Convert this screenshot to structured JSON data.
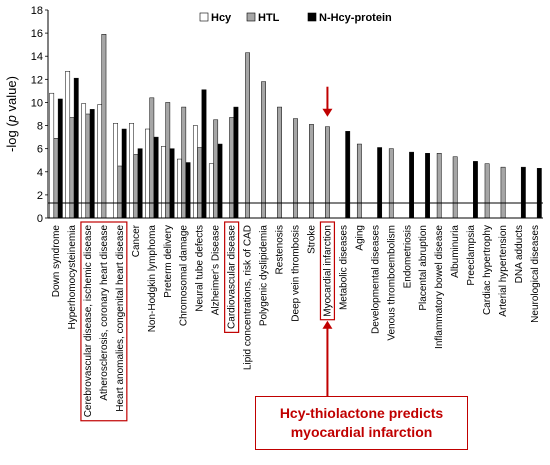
{
  "chart_data": {
    "type": "bar",
    "ylabel_prefix": "-log (",
    "ylabel_italic": "p",
    "ylabel_suffix": " value)",
    "ylim": [
      0,
      18
    ],
    "yticks": [
      0,
      2,
      4,
      6,
      8,
      10,
      12,
      14,
      16,
      18
    ],
    "threshold": 1.3,
    "legend_position": "top",
    "grid": false,
    "categories": [
      "Down syndrome",
      "Hyperhomocysteinemia",
      "Cerebrovascular disease, ischemic disease",
      "Atherosclerosis, coronary heart disease",
      "Heart anomalies, congenital heart disease",
      "Cancer",
      "Non-Hodgkin lymphoma",
      "Preterm delivery",
      "Chromosomal damage",
      "Neural tube defects",
      "Alzheimer's Disease",
      "Cardiovascular disease",
      "Lipid concentrations, risk of CAD",
      "Polygenic dyslipidemia",
      "Restenosis",
      "Deep vein thrombosis",
      "Stroke",
      "Myocardial infarction",
      "Metabolic diseases",
      "Aging",
      "Developmental diseases",
      "Venous thromboembolism",
      "Endometriosis",
      "Placental abruption",
      "Inflammatory bowel disease",
      "Albuminuria",
      "Preeclampsia",
      "Cardiac hypertrophy",
      "Arterial hypertension",
      "DNA adducts",
      "Neurological diseases"
    ],
    "series": [
      {
        "name": "Hcy",
        "color": "#ffffff",
        "values": [
          10.8,
          12.7,
          9.9,
          9.8,
          8.2,
          8.2,
          7.7,
          6.2,
          5.1,
          8.0,
          4.7,
          null,
          null,
          null,
          null,
          null,
          null,
          null,
          null,
          null,
          null,
          null,
          null,
          null,
          null,
          null,
          null,
          null,
          null,
          null,
          null
        ]
      },
      {
        "name": "HTL",
        "color": "#a6a6a6",
        "values": [
          6.9,
          8.7,
          9.0,
          15.9,
          4.5,
          5.5,
          10.4,
          10.0,
          9.6,
          6.1,
          8.5,
          8.7,
          14.3,
          11.8,
          9.6,
          8.6,
          8.1,
          7.9,
          null,
          6.4,
          null,
          6.0,
          null,
          null,
          5.6,
          5.3,
          null,
          4.7,
          4.4,
          null,
          null
        ]
      },
      {
        "name": "N-Hcy-protein",
        "color": "#000000",
        "values": [
          10.3,
          12.1,
          9.4,
          null,
          7.7,
          6.0,
          7.0,
          6.0,
          4.8,
          11.1,
          6.4,
          9.6,
          null,
          null,
          null,
          null,
          null,
          null,
          7.5,
          null,
          6.1,
          null,
          5.7,
          5.6,
          null,
          null,
          4.9,
          null,
          null,
          4.4,
          4.3
        ]
      }
    ],
    "highlighted": [
      "Cerebrovascular disease, ischemic disease",
      "Atherosclerosis, coronary heart disease",
      "Heart anomalies, congenital heart disease",
      "Cardiovascular disease",
      "Myocardial infarction"
    ],
    "arrow_target": "Myocardial infarction",
    "annotation": [
      "Hcy-thiolactone predicts",
      "myocardial infarction"
    ],
    "accent_color": "#c00000"
  }
}
